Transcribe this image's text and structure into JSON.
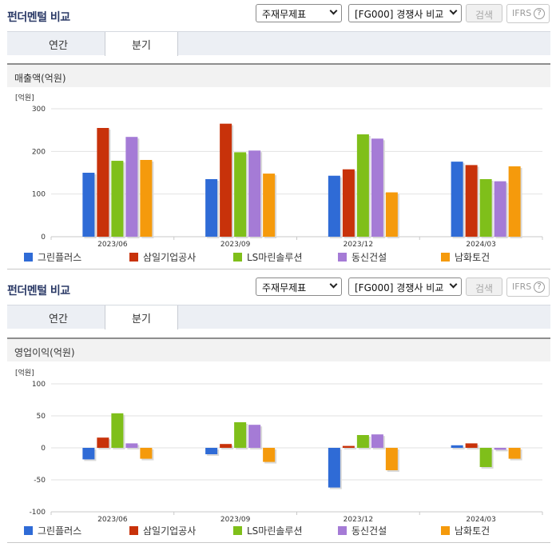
{
  "header": {
    "title": "펀더멘털 비교",
    "select1": "주재무제표",
    "select2": "[FG000] 경쟁사 비교",
    "search_label": "검색",
    "ifrs_label": "IFRS",
    "help_glyph": "?"
  },
  "tabs": [
    {
      "label": "연간",
      "active": false
    },
    {
      "label": "분기",
      "active": true
    }
  ],
  "colors": {
    "그린플러스": "#2f6bd6",
    "삼일기업공사": "#c8320a",
    "LS마린솔루션": "#7fbf1a",
    "동신건설": "#a57bd6",
    "남화토건": "#f59a0c"
  },
  "chart_data": [
    {
      "type": "bar",
      "title": "매출액(억원)",
      "unit_label": "[억원]",
      "categories": [
        "2023/06",
        "2023/09",
        "2023/12",
        "2024/03"
      ],
      "ylim": [
        0,
        300
      ],
      "yticks": [
        0,
        100,
        200,
        300
      ],
      "grid": true,
      "legend": "bottom",
      "series": [
        {
          "name": "그린플러스",
          "values": [
            150,
            135,
            143,
            176
          ]
        },
        {
          "name": "삼일기업공사",
          "values": [
            255,
            265,
            158,
            168
          ]
        },
        {
          "name": "LS마린솔루션",
          "values": [
            178,
            198,
            240,
            135
          ]
        },
        {
          "name": "동신건설",
          "values": [
            234,
            202,
            230,
            130
          ]
        },
        {
          "name": "남화토건",
          "values": [
            180,
            148,
            104,
            165
          ]
        }
      ]
    },
    {
      "type": "bar",
      "title": "영업이익(억원)",
      "unit_label": "[억원]",
      "categories": [
        "2023/06",
        "2023/09",
        "2023/12",
        "2024/03"
      ],
      "ylim": [
        -100,
        100
      ],
      "yticks": [
        -100,
        -50,
        0,
        50,
        100
      ],
      "grid": true,
      "legend": "bottom",
      "series": [
        {
          "name": "그린플러스",
          "values": [
            -18,
            -10,
            -62,
            4
          ]
        },
        {
          "name": "삼일기업공사",
          "values": [
            16,
            6,
            3,
            7
          ]
        },
        {
          "name": "LS마린솔루션",
          "values": [
            54,
            40,
            20,
            -30
          ]
        },
        {
          "name": "동신건설",
          "values": [
            7,
            36,
            21,
            -3
          ]
        },
        {
          "name": "남화토건",
          "values": [
            -17,
            -22,
            -35,
            -17
          ]
        }
      ]
    }
  ]
}
